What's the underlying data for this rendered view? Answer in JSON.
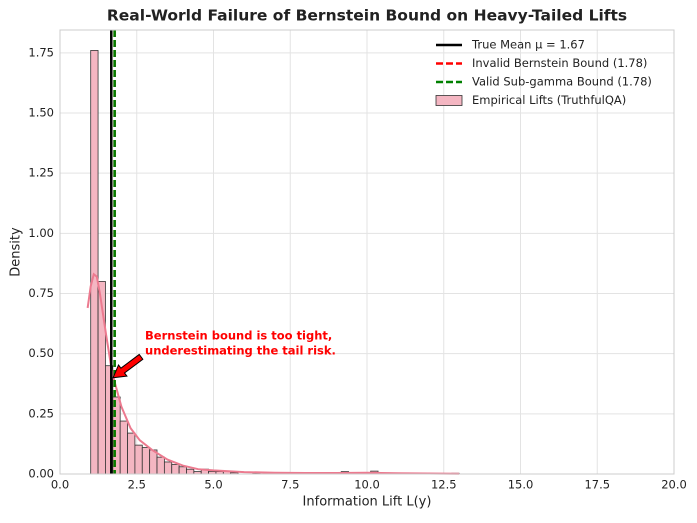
{
  "chart_data": {
    "type": "histogram",
    "title": "Real-World Failure of Bernstein Bound on Heavy-Tailed Lifts",
    "x_label": "Information Lift L(y)",
    "y_label": "Density",
    "xlim": [
      0,
      20
    ],
    "ylim": [
      0,
      1.845
    ],
    "xticks": [
      {
        "value": 0,
        "label": "0.0"
      },
      {
        "value": 2.5,
        "label": "2.5"
      },
      {
        "value": 5,
        "label": "5.0"
      },
      {
        "value": 7.5,
        "label": "7.5"
      },
      {
        "value": 10,
        "label": "10.0"
      },
      {
        "value": 12.5,
        "label": "12.5"
      },
      {
        "value": 15,
        "label": "15.0"
      },
      {
        "value": 17.5,
        "label": "17.5"
      },
      {
        "value": 20,
        "label": "20.0"
      }
    ],
    "yticks": [
      {
        "value": 0,
        "label": "0.00"
      },
      {
        "value": 0.25,
        "label": "0.25"
      },
      {
        "value": 0.5,
        "label": "0.50"
      },
      {
        "value": 0.75,
        "label": "0.75"
      },
      {
        "value": 1,
        "label": "1.00"
      },
      {
        "value": 1.25,
        "label": "1.25"
      },
      {
        "value": 1.5,
        "label": "1.50"
      },
      {
        "value": 1.75,
        "label": "1.75"
      }
    ],
    "grid": true,
    "legend": "upper right",
    "vlines": [
      {
        "name": "True Mean μ = 1.67",
        "x": 1.67,
        "color": "#000000",
        "style": "solid"
      },
      {
        "name": "Invalid Bernstein Bound (1.78)",
        "x": 1.78,
        "color": "#ff0000",
        "style": "dashed"
      },
      {
        "name": "Valid Sub-gamma Bound (1.78)",
        "x": 1.78,
        "color": "#008000",
        "style": "dashed"
      }
    ],
    "histogram": {
      "name": "Empirical Lifts (TruthfulQA)",
      "color": "#f4b6c2",
      "bins": [
        1.0,
        1.24,
        1.48,
        1.72,
        1.96,
        2.2,
        2.44,
        2.68,
        2.92,
        3.16,
        3.4,
        3.64,
        3.88,
        4.12,
        4.36,
        4.6,
        4.84,
        5.08,
        5.32,
        5.56,
        5.8,
        6.04,
        6.28,
        6.52,
        6.76,
        7.0,
        7.24,
        7.48,
        7.72,
        7.96,
        8.2,
        8.44,
        8.68,
        8.92,
        9.16,
        9.4,
        9.64,
        9.88,
        10.12,
        10.36,
        10.6,
        10.84,
        11.08,
        11.32,
        11.56,
        11.8,
        12.04,
        12.28,
        12.52,
        12.76,
        13.0
      ],
      "values": [
        1.76,
        0.8,
        0.45,
        0.32,
        0.22,
        0.17,
        0.12,
        0.11,
        0.1,
        0.07,
        0.05,
        0.04,
        0.03,
        0.02,
        0.01,
        0.02,
        0.01,
        0.01,
        0.01,
        0.005,
        0,
        0,
        0.003,
        0,
        0,
        0.003,
        0,
        0.003,
        0,
        0,
        0,
        0,
        0,
        0,
        0.01,
        0,
        0,
        0,
        0.012,
        0,
        0,
        0,
        0,
        0,
        0,
        0,
        0,
        0,
        0,
        0.003
      ]
    },
    "kde": {
      "color": "#ec7a8f",
      "x": [
        0.9,
        1.0,
        1.1,
        1.2,
        1.3,
        1.5,
        1.7,
        2.0,
        2.3,
        2.6,
        3.0,
        3.5,
        4.0,
        4.5,
        5.0,
        6.0,
        7.0,
        8.0,
        9.0,
        10.0,
        11.0,
        12.0,
        13.0
      ],
      "values": [
        0.69,
        0.78,
        0.83,
        0.82,
        0.75,
        0.58,
        0.42,
        0.28,
        0.19,
        0.14,
        0.1,
        0.06,
        0.035,
        0.02,
        0.015,
        0.008,
        0.005,
        0.004,
        0.004,
        0.005,
        0.003,
        0.002,
        0.001
      ]
    },
    "annotation": {
      "text": [
        "Bernstein bound is too tight,",
        "underestimating the tail risk."
      ],
      "color": "#ff0000",
      "xy": [
        1.73,
        0.4
      ],
      "xytext": [
        2.77,
        0.545
      ]
    }
  }
}
